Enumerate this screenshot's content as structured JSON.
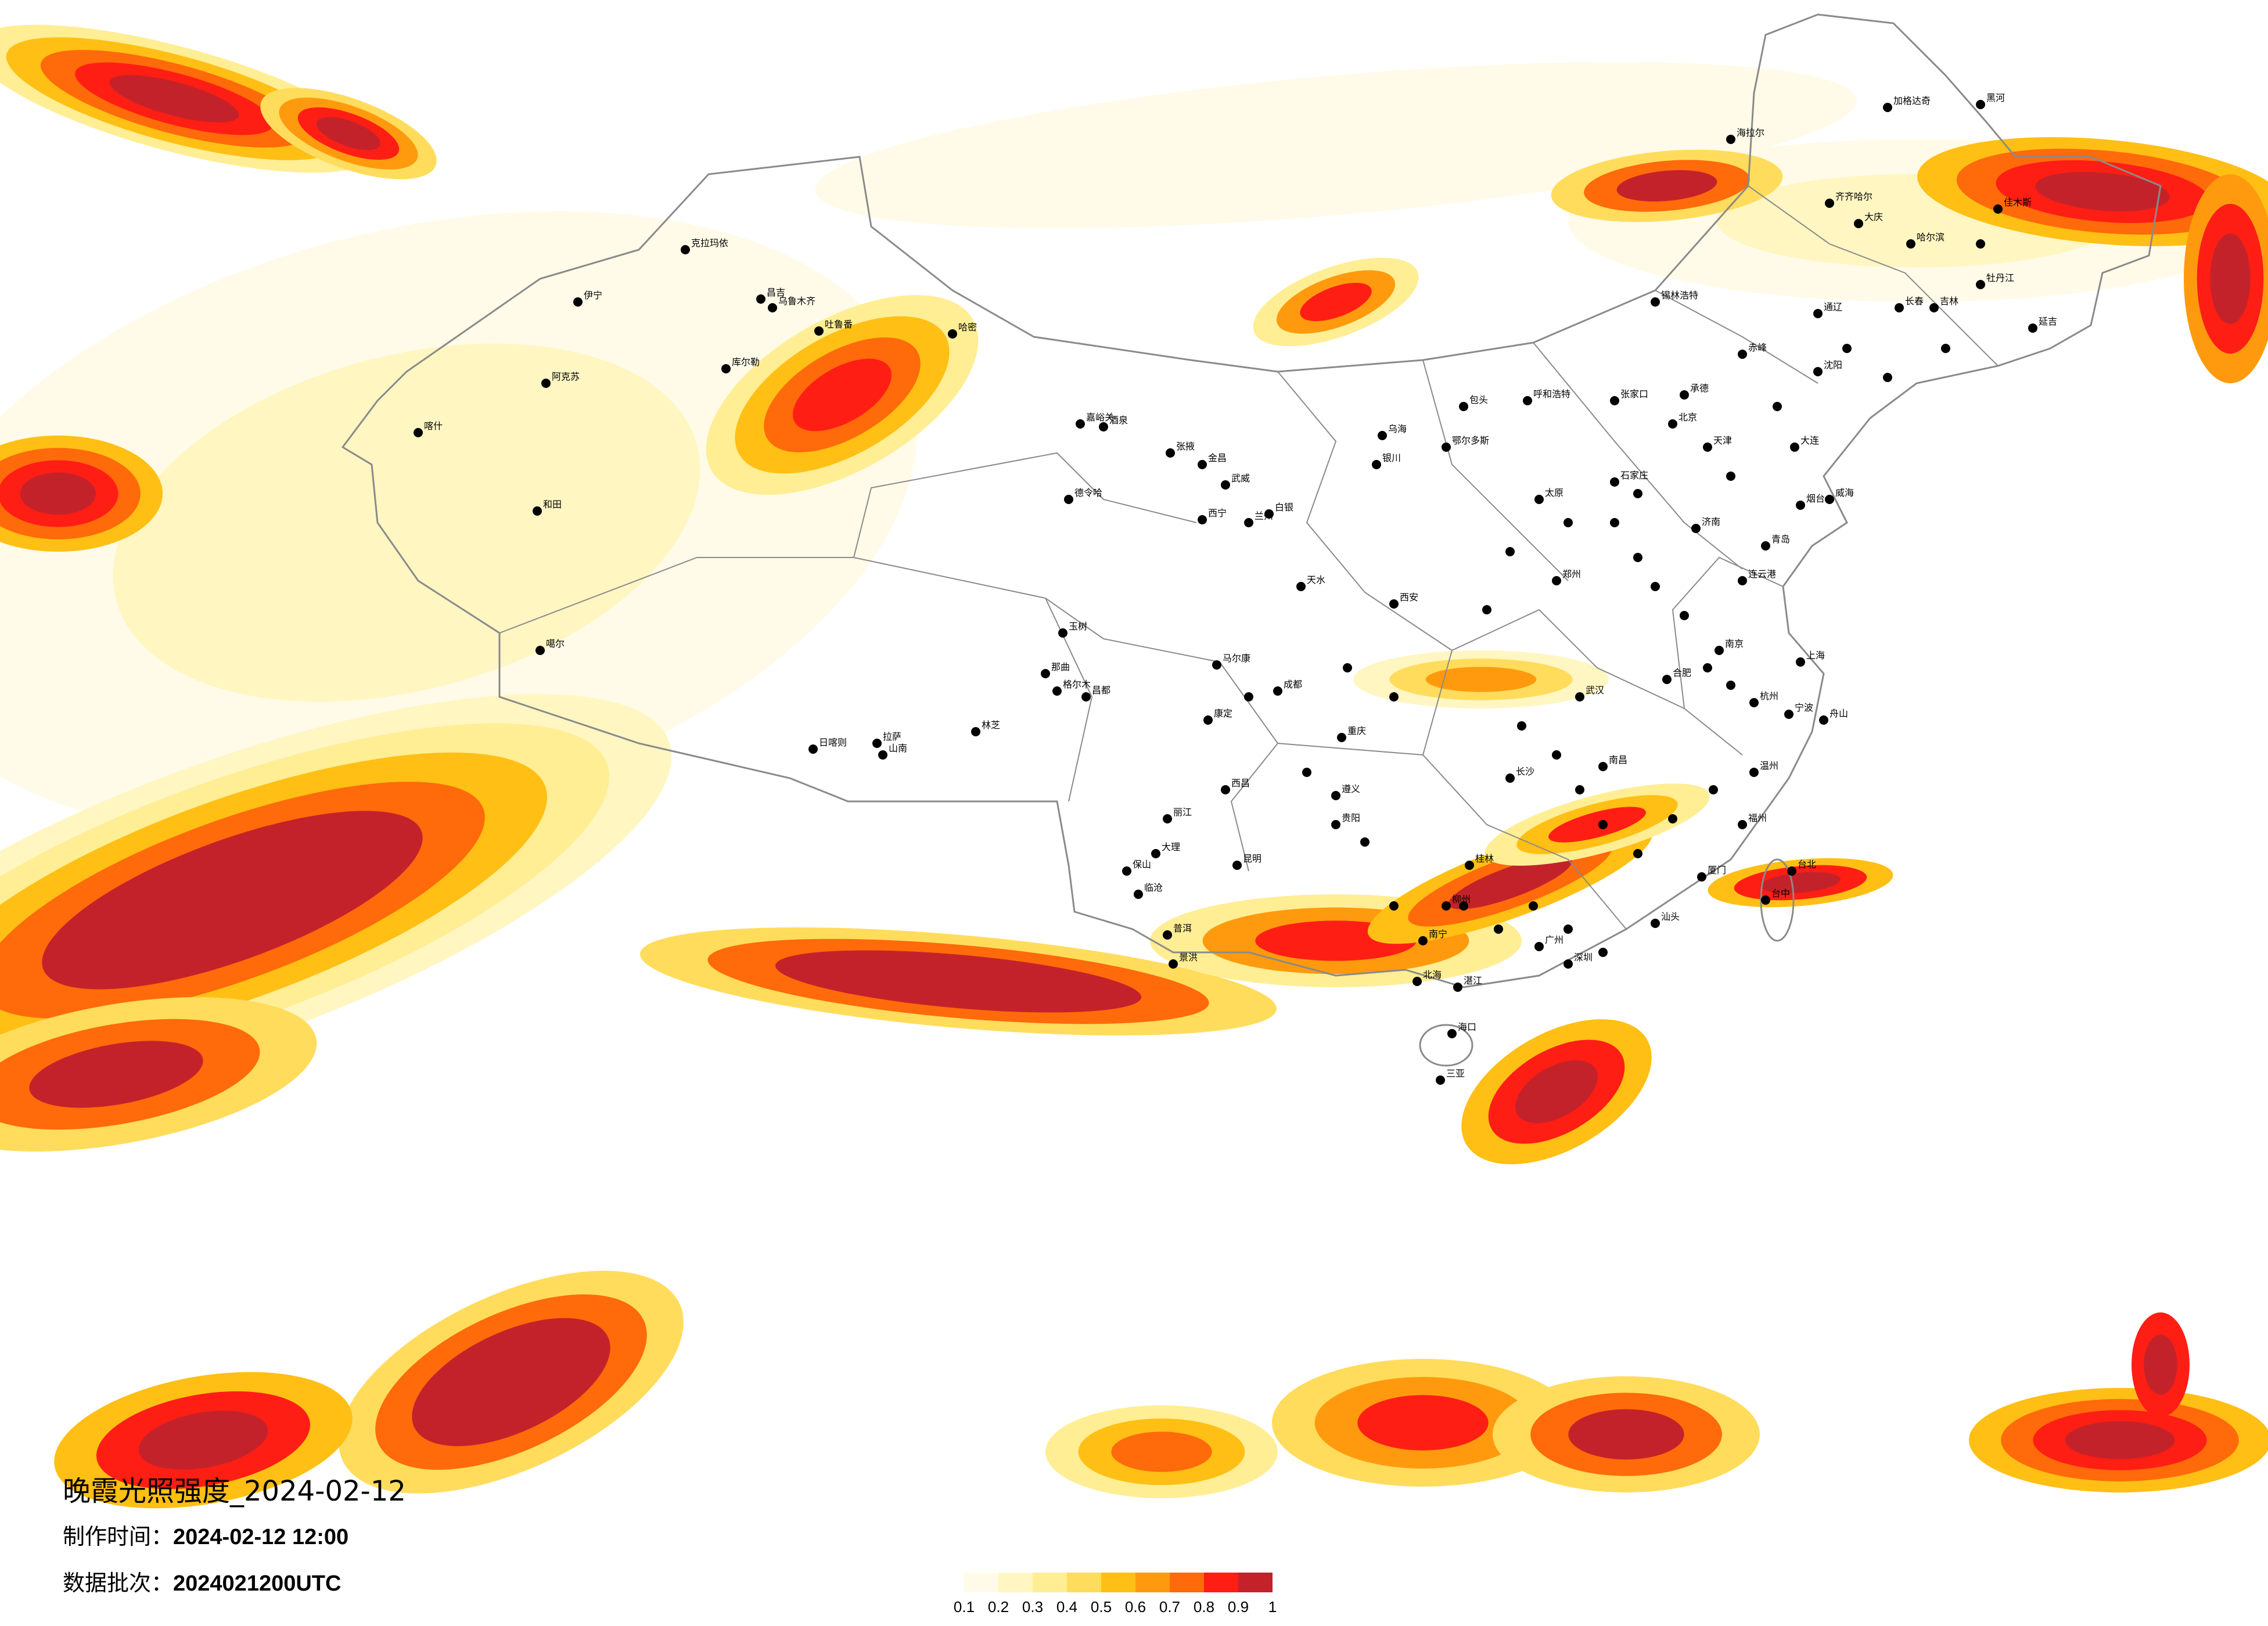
{
  "header": {
    "title": "晚霞光照强度_2024-02-12",
    "made_label": "制作时间：",
    "made_value": "2024-02-12 12:00",
    "batch_label": "数据批次：",
    "batch_value": "2024021200UTC"
  },
  "legend": {
    "colors": [
      "#fffbe8",
      "#fff6c2",
      "#ffee94",
      "#ffdc5c",
      "#ffbf14",
      "#ff9a0e",
      "#ff6a0a",
      "#ff1e14",
      "#c4222a"
    ],
    "ticks": [
      "0.1",
      "0.2",
      "0.3",
      "0.4",
      "0.5",
      "0.6",
      "0.7",
      "0.8",
      "0.9",
      "1"
    ]
  },
  "cities": [
    {
      "name": "克拉玛依",
      "mx": 1180,
      "my": 430
    },
    {
      "name": "伊宁",
      "mx": 995,
      "my": 520
    },
    {
      "name": "昌吉",
      "mx": 1310,
      "my": 515
    },
    {
      "name": "乌鲁木齐",
      "mx": 1330,
      "my": 530
    },
    {
      "name": "吐鲁番",
      "mx": 1410,
      "my": 570
    },
    {
      "name": "哈密",
      "mx": 1640,
      "my": 575
    },
    {
      "name": "库尔勒",
      "mx": 1250,
      "my": 635
    },
    {
      "name": "阿克苏",
      "mx": 940,
      "my": 660
    },
    {
      "name": "喀什",
      "mx": 720,
      "my": 745
    },
    {
      "name": "和田",
      "mx": 925,
      "my": 880
    },
    {
      "name": "噶尔",
      "mx": 930,
      "my": 1120
    },
    {
      "name": "嘉峪关",
      "mx": 1860,
      "my": 730
    },
    {
      "name": "酒泉",
      "mx": 1900,
      "my": 735
    },
    {
      "name": "张掖",
      "mx": 2015,
      "my": 780
    },
    {
      "name": "金昌",
      "mx": 2070,
      "my": 800
    },
    {
      "name": "武威",
      "mx": 2110,
      "my": 835
    },
    {
      "name": "德令哈",
      "mx": 1840,
      "my": 860
    },
    {
      "name": "西宁",
      "mx": 2070,
      "my": 895
    },
    {
      "name": "兰州",
      "mx": 2150,
      "my": 900
    },
    {
      "name": "白银",
      "mx": 2185,
      "my": 885
    },
    {
      "name": "天水",
      "mx": 2240,
      "my": 1010
    },
    {
      "name": "格尔木",
      "mx": 1820,
      "my": 1190
    },
    {
      "name": "那曲",
      "mx": 1800,
      "my": 1160
    },
    {
      "name": "日喀则",
      "mx": 1400,
      "my": 1290
    },
    {
      "name": "拉萨",
      "mx": 1510,
      "my": 1280
    },
    {
      "name": "山南",
      "mx": 1520,
      "my": 1300
    },
    {
      "name": "林芝",
      "mx": 1680,
      "my": 1260
    },
    {
      "name": "昌都",
      "mx": 1870,
      "my": 1200
    },
    {
      "name": "玉树",
      "mx": 1830,
      "my": 1090
    },
    {
      "name": "马尔康",
      "mx": 2095,
      "my": 1145
    },
    {
      "name": "康定",
      "mx": 2080,
      "my": 1240
    },
    {
      "name": "成都",
      "mx": 2200,
      "my": 1190
    },
    {
      "name": "西昌",
      "mx": 2110,
      "my": 1360
    },
    {
      "name": "丽江",
      "mx": 2010,
      "my": 1410
    },
    {
      "name": "大理",
      "mx": 1990,
      "my": 1470
    },
    {
      "name": "昆明",
      "mx": 2130,
      "my": 1490
    },
    {
      "name": "保山",
      "mx": 1940,
      "my": 1500
    },
    {
      "name": "临沧",
      "mx": 1960,
      "my": 1540
    },
    {
      "name": "普洱",
      "mx": 2010,
      "my": 1610
    },
    {
      "name": "景洪",
      "mx": 2020,
      "my": 1660
    },
    {
      "name": "贵阳",
      "mx": 2300,
      "my": 1420
    },
    {
      "name": "遵义",
      "mx": 2300,
      "my": 1370
    },
    {
      "name": "重庆",
      "mx": 2310,
      "my": 1270
    },
    {
      "name": "南宁",
      "mx": 2450,
      "my": 1620
    },
    {
      "name": "桂林",
      "mx": 2530,
      "my": 1490
    },
    {
      "name": "柳州",
      "mx": 2490,
      "my": 1560
    },
    {
      "name": "海口",
      "mx": 2500,
      "my": 1780
    },
    {
      "name": "三亚",
      "mx": 2480,
      "my": 1860
    },
    {
      "name": "北海",
      "mx": 2440,
      "my": 1690
    },
    {
      "name": "湛江",
      "mx": 2510,
      "my": 1700
    },
    {
      "name": "广州",
      "mx": 2650,
      "my": 1630
    },
    {
      "name": "深圳",
      "mx": 2700,
      "my": 1660
    },
    {
      "name": "汕头",
      "mx": 2850,
      "my": 1590
    },
    {
      "name": "厦门",
      "mx": 2930,
      "my": 1510
    },
    {
      "name": "福州",
      "mx": 3000,
      "my": 1420
    },
    {
      "name": "台北",
      "mx": 3085,
      "my": 1500
    },
    {
      "name": "台中",
      "mx": 3040,
      "my": 1550
    },
    {
      "name": "长沙",
      "mx": 2600,
      "my": 1340
    },
    {
      "name": "武汉",
      "mx": 2720,
      "my": 1200
    },
    {
      "name": "南昌",
      "mx": 2760,
      "my": 1320
    },
    {
      "name": "合肥",
      "mx": 2870,
      "my": 1170
    },
    {
      "name": "南京",
      "mx": 2960,
      "my": 1120
    },
    {
      "name": "杭州",
      "mx": 3020,
      "my": 1210
    },
    {
      "name": "上海",
      "mx": 3100,
      "my": 1140
    },
    {
      "name": "宁波",
      "mx": 3080,
      "my": 1230
    },
    {
      "name": "温州",
      "mx": 3020,
      "my": 1330
    },
    {
      "name": "舟山",
      "mx": 3140,
      "my": 1240
    },
    {
      "name": "郑州",
      "mx": 2680,
      "my": 1000
    },
    {
      "name": "西安",
      "mx": 2400,
      "my": 1040
    },
    {
      "name": "太原",
      "mx": 2650,
      "my": 860
    },
    {
      "name": "石家庄",
      "mx": 2780,
      "my": 830
    },
    {
      "name": "北京",
      "mx": 2880,
      "my": 730
    },
    {
      "name": "天津",
      "mx": 2940,
      "my": 770
    },
    {
      "name": "济南",
      "mx": 2920,
      "my": 910
    },
    {
      "name": "青岛",
      "mx": 3040,
      "my": 940
    },
    {
      "name": "烟台",
      "mx": 3100,
      "my": 870
    },
    {
      "name": "威海",
      "mx": 3150,
      "my": 860
    },
    {
      "name": "连云港",
      "mx": 3000,
      "my": 1000
    },
    {
      "name": "呼和浩特",
      "mx": 2630,
      "my": 690
    },
    {
      "name": "包头",
      "mx": 2520,
      "my": 700
    },
    {
      "name": "银川",
      "mx": 2370,
      "my": 800
    },
    {
      "name": "乌海",
      "mx": 2380,
      "my": 750
    },
    {
      "name": "鄂尔多斯",
      "mx": 2490,
      "my": 770
    },
    {
      "name": "张家口",
      "mx": 2780,
      "my": 690
    },
    {
      "name": "承德",
      "mx": 2900,
      "my": 680
    },
    {
      "name": "沈阳",
      "mx": 3130,
      "my": 640
    },
    {
      "name": "大连",
      "mx": 3090,
      "my": 770
    },
    {
      "name": "长春",
      "mx": 3270,
      "my": 530
    },
    {
      "name": "吉林",
      "mx": 3330,
      "my": 530
    },
    {
      "name": "哈尔滨",
      "mx": 3290,
      "my": 420
    },
    {
      "name": "齐齐哈尔",
      "mx": 3150,
      "my": 350
    },
    {
      "name": "大庆",
      "mx": 3200,
      "my": 385
    },
    {
      "name": "牡丹江",
      "mx": 3410,
      "my": 490
    },
    {
      "name": "佳木斯",
      "mx": 3440,
      "my": 360
    },
    {
      "name": "海拉尔",
      "mx": 2980,
      "my": 240
    },
    {
      "name": "加格达奇",
      "mx": 3250,
      "my": 185
    },
    {
      "name": "黑河",
      "mx": 3410,
      "my": 180
    },
    {
      "name": "锡林浩特",
      "mx": 2850,
      "my": 520
    },
    {
      "name": "通辽",
      "mx": 3130,
      "my": 540
    },
    {
      "name": "赤峰",
      "mx": 3000,
      "my": 610
    },
    {
      "name": "延吉",
      "mx": 3500,
      "my": 565
    }
  ]
}
